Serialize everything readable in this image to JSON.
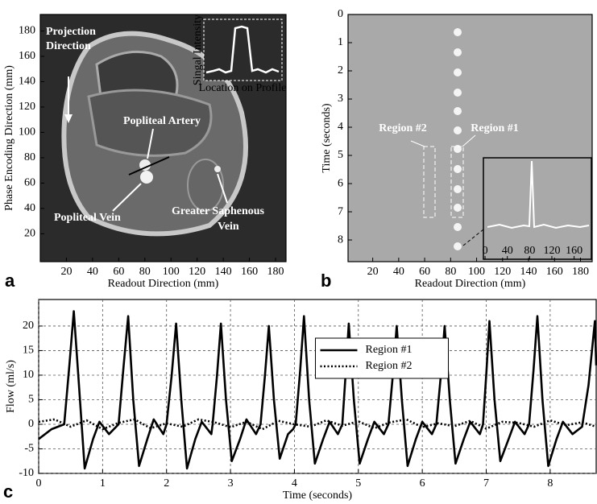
{
  "chart_data": [
    {
      "type": "image",
      "panel_label": "a",
      "x_label": "Readout Direction (mm)",
      "y_label": "Phase Encoding Direction (mm)",
      "xlim": [
        0,
        188
      ],
      "xticks": [
        20,
        40,
        60,
        80,
        100,
        120,
        140,
        160,
        180
      ],
      "ylim": [
        -2,
        193
      ],
      "yticks": [
        20,
        40,
        60,
        80,
        100,
        120,
        140,
        160,
        180
      ],
      "annotations": [
        [
          "Projection",
          "Direction"
        ],
        [
          "Popliteal Artery"
        ],
        [
          "Popliteal Vein"
        ],
        [
          "Greater Saphenous",
          "Vein"
        ]
      ],
      "inset": {
        "y_label": "Singal Intensity",
        "x_label": "Location on Profile"
      }
    },
    {
      "type": "image",
      "panel_label": "b",
      "x_label": "Readout Direction (mm)",
      "y_label": "Time (seconds)",
      "xlim": [
        1,
        189
      ],
      "xticks": [
        20,
        40,
        60,
        80,
        100,
        120,
        140,
        160,
        180
      ],
      "ylim": [
        0,
        8.77
      ],
      "yticks": [
        0,
        1,
        2,
        3,
        4,
        5,
        6,
        7,
        8
      ],
      "y_reversed": true,
      "annotations": [
        [
          "Region #2"
        ],
        [
          "Region #1"
        ]
      ],
      "inset": {
        "xlim": [
          -3,
          191
        ],
        "xticks": [
          0,
          40,
          80,
          120,
          160
        ]
      }
    },
    {
      "type": "line",
      "panel_label": "c",
      "x_label": "Time (seconds)",
      "y_label": "Flow (ml/s)",
      "xlim": [
        0,
        8.72
      ],
      "xticks": [
        0,
        1,
        2,
        3,
        4,
        5,
        6,
        7,
        8
      ],
      "ylim": [
        -10,
        25.4
      ],
      "yticks": [
        -10,
        -5,
        0,
        5,
        10,
        15,
        20
      ],
      "grid": true,
      "legend": "upper center",
      "series": [
        {
          "name": "Region #1",
          "color": "#000000",
          "style": "solid",
          "x": [
            0,
            0.2,
            0.4,
            0.48,
            0.55,
            0.63,
            0.72,
            0.85,
            0.95,
            1.1,
            1.25,
            1.33,
            1.4,
            1.48,
            1.57,
            1.7,
            1.8,
            1.95,
            2.0,
            2.08,
            2.15,
            2.23,
            2.32,
            2.45,
            2.55,
            2.7,
            2.72,
            2.79,
            2.85,
            2.93,
            3.02,
            3.15,
            3.25,
            3.4,
            3.47,
            3.54,
            3.6,
            3.68,
            3.77,
            3.9,
            3.98,
            4.02,
            4.09,
            4.15,
            4.23,
            4.32,
            4.45,
            4.55,
            4.68,
            4.75,
            4.8,
            4.85,
            4.93,
            5.02,
            5.15,
            5.25,
            5.4,
            5.47,
            5.54,
            5.6,
            5.68,
            5.77,
            5.9,
            6.0,
            6.15,
            6.22,
            6.29,
            6.35,
            6.43,
            6.52,
            6.65,
            6.75,
            6.9,
            6.95,
            7.0,
            7.05,
            7.13,
            7.22,
            7.35,
            7.45,
            7.6,
            7.67,
            7.74,
            7.8,
            7.88,
            7.97,
            8.1,
            8.2,
            8.35,
            8.5,
            8.6,
            8.7,
            8.72
          ],
          "values": [
            -3,
            -1,
            0,
            12,
            23,
            8,
            -9,
            -3,
            0.5,
            -2,
            0,
            12,
            22,
            5,
            -8.5,
            -3,
            1,
            -2,
            0,
            10,
            20.5,
            5,
            -9,
            -3,
            0.5,
            -2,
            0,
            10,
            20.5,
            5,
            -7.5,
            -3,
            1,
            -2,
            0,
            10,
            20,
            5,
            -7,
            -2,
            -1,
            0,
            11,
            22,
            5,
            -8,
            -3,
            0.5,
            -2,
            0,
            10,
            20.5,
            5,
            -8,
            -3,
            0.5,
            -2,
            0,
            10,
            20,
            5,
            -8.5,
            -3,
            0.5,
            -2,
            0,
            10,
            20,
            5,
            -8,
            -3,
            0.5,
            -2,
            0,
            10,
            21,
            5,
            -7.5,
            -3,
            0.5,
            -2,
            0,
            11,
            22,
            5,
            -8.5,
            -3,
            0.5,
            -2,
            -0.5,
            8,
            21,
            12
          ]
        },
        {
          "name": "Region #2",
          "color": "#000000",
          "style": "dotted",
          "x": [
            0,
            0.25,
            0.5,
            0.75,
            1,
            1.25,
            1.5,
            1.75,
            2,
            2.25,
            2.5,
            2.75,
            3,
            3.25,
            3.5,
            3.75,
            4,
            4.25,
            4.5,
            4.75,
            5,
            5.25,
            5.5,
            5.75,
            6,
            6.25,
            6.5,
            6.75,
            7,
            7.25,
            7.5,
            7.75,
            8,
            8.25,
            8.5,
            8.72
          ],
          "values": [
            0.5,
            1,
            -0.5,
            0.8,
            -1,
            0.3,
            1,
            -0.8,
            0.2,
            -0.5,
            1,
            0.4,
            -0.6,
            0.5,
            -1,
            0.7,
            0,
            -0.5,
            0.8,
            -0.3,
            0.6,
            -0.8,
            0.4,
            1,
            -0.6,
            0.2,
            -0.4,
            0.7,
            -0.9,
            0.5,
            0.3,
            -0.5,
            0.8,
            -0.2,
            0.4,
            -0.5
          ]
        }
      ]
    }
  ]
}
